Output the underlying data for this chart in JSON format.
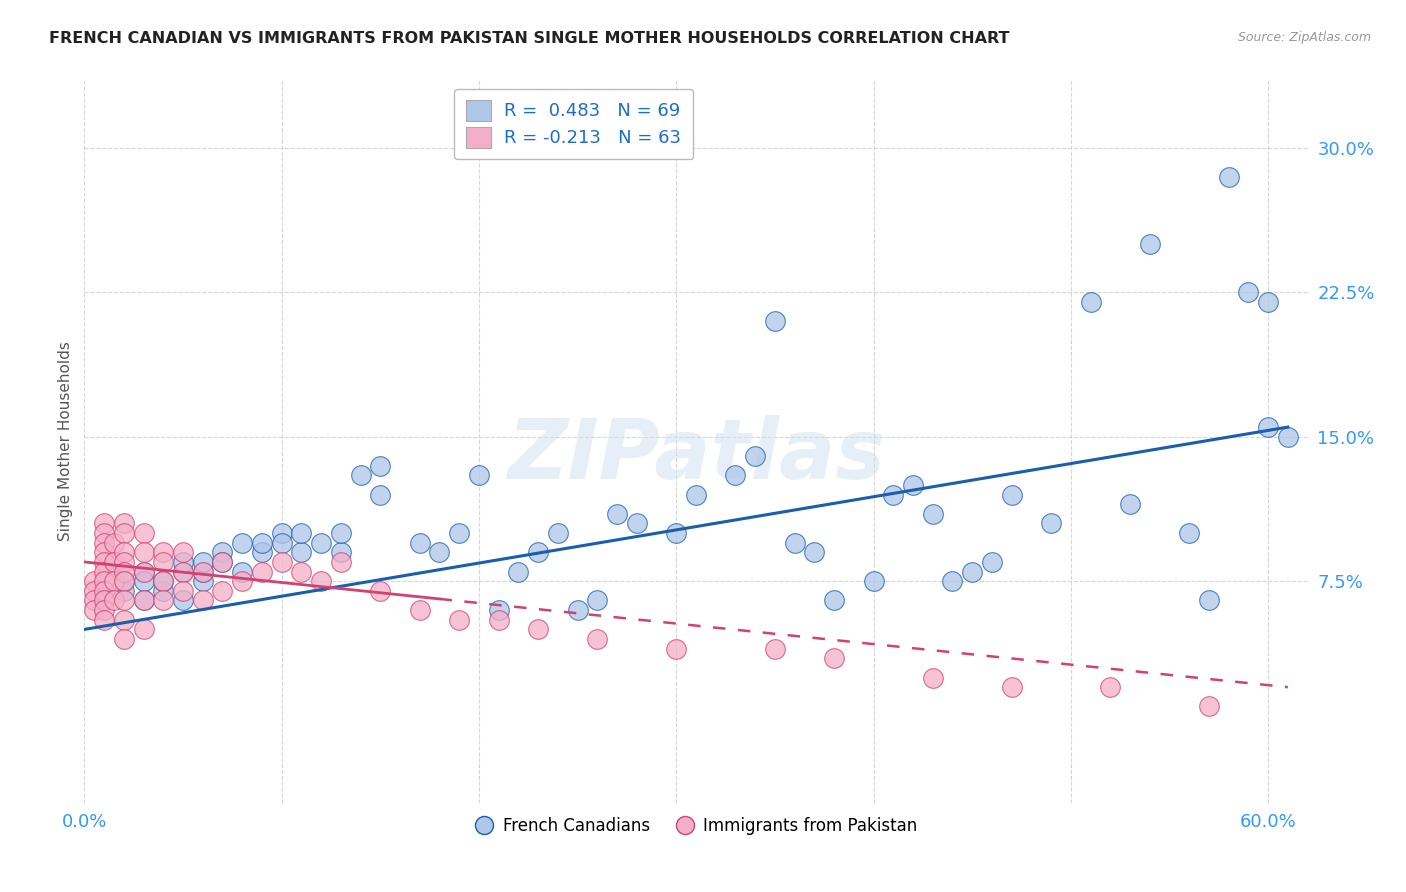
{
  "title": "FRENCH CANADIAN VS IMMIGRANTS FROM PAKISTAN SINGLE MOTHER HOUSEHOLDS CORRELATION CHART",
  "source": "Source: ZipAtlas.com",
  "ylabel": "Single Mother Households",
  "xlim": [
    0.0,
    0.62
  ],
  "ylim": [
    -0.04,
    0.335
  ],
  "xticks": [
    0.0,
    0.1,
    0.2,
    0.3,
    0.4,
    0.5,
    0.6
  ],
  "xticklabels": [
    "0.0%",
    "",
    "",
    "",
    "",
    "",
    "60.0%"
  ],
  "yticks": [
    0.075,
    0.15,
    0.225,
    0.3
  ],
  "yticklabels": [
    "7.5%",
    "15.0%",
    "22.5%",
    "30.0%"
  ],
  "R_blue": 0.483,
  "N_blue": 69,
  "R_pink": -0.213,
  "N_pink": 63,
  "blue_color": "#aec6e8",
  "pink_color": "#f4afc8",
  "blue_line_color": "#1a5fad",
  "pink_line_color": "#d44070",
  "watermark": "ZIPatlas",
  "legend_label_blue": "French Canadians",
  "legend_label_pink": "Immigrants from Pakistan",
  "blue_scatter_x": [
    0.01,
    0.02,
    0.02,
    0.03,
    0.03,
    0.03,
    0.04,
    0.04,
    0.05,
    0.05,
    0.05,
    0.06,
    0.06,
    0.06,
    0.07,
    0.07,
    0.08,
    0.08,
    0.09,
    0.09,
    0.1,
    0.1,
    0.11,
    0.11,
    0.12,
    0.13,
    0.13,
    0.14,
    0.15,
    0.15,
    0.17,
    0.18,
    0.19,
    0.2,
    0.21,
    0.22,
    0.23,
    0.24,
    0.25,
    0.26,
    0.27,
    0.28,
    0.3,
    0.31,
    0.33,
    0.34,
    0.35,
    0.36,
    0.37,
    0.38,
    0.4,
    0.41,
    0.42,
    0.43,
    0.44,
    0.45,
    0.46,
    0.47,
    0.49,
    0.51,
    0.53,
    0.54,
    0.56,
    0.57,
    0.58,
    0.59,
    0.6,
    0.6,
    0.61
  ],
  "blue_scatter_y": [
    0.065,
    0.07,
    0.075,
    0.065,
    0.08,
    0.075,
    0.07,
    0.075,
    0.065,
    0.08,
    0.085,
    0.075,
    0.08,
    0.085,
    0.09,
    0.085,
    0.095,
    0.08,
    0.09,
    0.095,
    0.1,
    0.095,
    0.09,
    0.1,
    0.095,
    0.09,
    0.1,
    0.13,
    0.12,
    0.135,
    0.095,
    0.09,
    0.1,
    0.13,
    0.06,
    0.08,
    0.09,
    0.1,
    0.06,
    0.065,
    0.11,
    0.105,
    0.1,
    0.12,
    0.13,
    0.14,
    0.21,
    0.095,
    0.09,
    0.065,
    0.075,
    0.12,
    0.125,
    0.11,
    0.075,
    0.08,
    0.085,
    0.12,
    0.105,
    0.22,
    0.115,
    0.25,
    0.1,
    0.065,
    0.285,
    0.225,
    0.22,
    0.155,
    0.15
  ],
  "pink_scatter_x": [
    0.005,
    0.005,
    0.005,
    0.005,
    0.01,
    0.01,
    0.01,
    0.01,
    0.01,
    0.01,
    0.01,
    0.01,
    0.01,
    0.01,
    0.01,
    0.015,
    0.015,
    0.015,
    0.015,
    0.02,
    0.02,
    0.02,
    0.02,
    0.02,
    0.02,
    0.02,
    0.02,
    0.02,
    0.03,
    0.03,
    0.03,
    0.03,
    0.03,
    0.04,
    0.04,
    0.04,
    0.04,
    0.05,
    0.05,
    0.05,
    0.06,
    0.06,
    0.07,
    0.07,
    0.08,
    0.09,
    0.1,
    0.11,
    0.12,
    0.13,
    0.15,
    0.17,
    0.19,
    0.21,
    0.23,
    0.26,
    0.3,
    0.35,
    0.38,
    0.43,
    0.47,
    0.52,
    0.57
  ],
  "pink_scatter_y": [
    0.075,
    0.07,
    0.065,
    0.06,
    0.105,
    0.1,
    0.095,
    0.09,
    0.085,
    0.08,
    0.075,
    0.07,
    0.065,
    0.06,
    0.055,
    0.095,
    0.085,
    0.075,
    0.065,
    0.105,
    0.1,
    0.09,
    0.085,
    0.08,
    0.075,
    0.065,
    0.055,
    0.045,
    0.1,
    0.09,
    0.08,
    0.065,
    0.05,
    0.09,
    0.085,
    0.075,
    0.065,
    0.09,
    0.08,
    0.07,
    0.08,
    0.065,
    0.085,
    0.07,
    0.075,
    0.08,
    0.085,
    0.08,
    0.075,
    0.085,
    0.07,
    0.06,
    0.055,
    0.055,
    0.05,
    0.045,
    0.04,
    0.04,
    0.035,
    0.025,
    0.02,
    0.02,
    0.01
  ]
}
